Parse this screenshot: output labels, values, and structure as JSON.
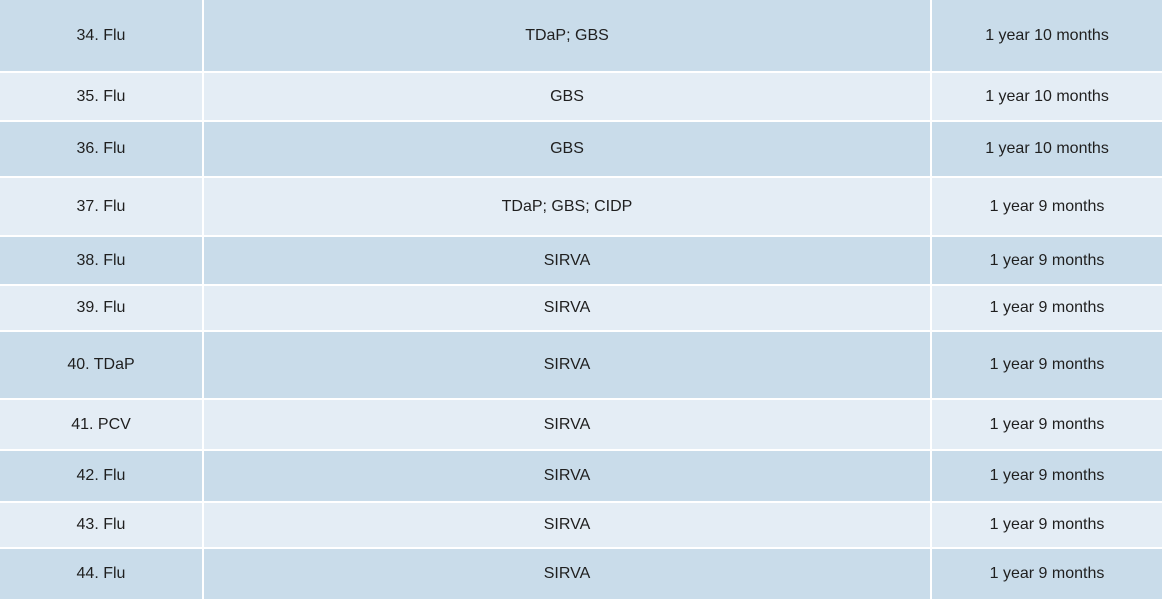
{
  "table": {
    "rows": [
      [
        "34. Flu",
        "TDaP; GBS",
        "1 year 10 months"
      ],
      [
        "35. Flu",
        "GBS",
        "1 year 10 months"
      ],
      [
        "36. Flu",
        "GBS",
        "1 year 10 months"
      ],
      [
        "37. Flu",
        "TDaP; GBS; CIDP",
        "1 year 9 months"
      ],
      [
        "38. Flu",
        "SIRVA",
        "1 year 9 months"
      ],
      [
        "39. Flu",
        "SIRVA",
        "1 year 9 months"
      ],
      [
        "40. TDaP",
        "SIRVA",
        "1 year 9 months"
      ],
      [
        "41. PCV",
        "SIRVA",
        "1 year 9 months"
      ],
      [
        "42. Flu",
        "SIRVA",
        "1 year 9 months"
      ],
      [
        "43. Flu",
        "SIRVA",
        "1 year 9 months"
      ],
      [
        "44. Flu",
        "SIRVA",
        "1 year 9 months"
      ]
    ]
  }
}
